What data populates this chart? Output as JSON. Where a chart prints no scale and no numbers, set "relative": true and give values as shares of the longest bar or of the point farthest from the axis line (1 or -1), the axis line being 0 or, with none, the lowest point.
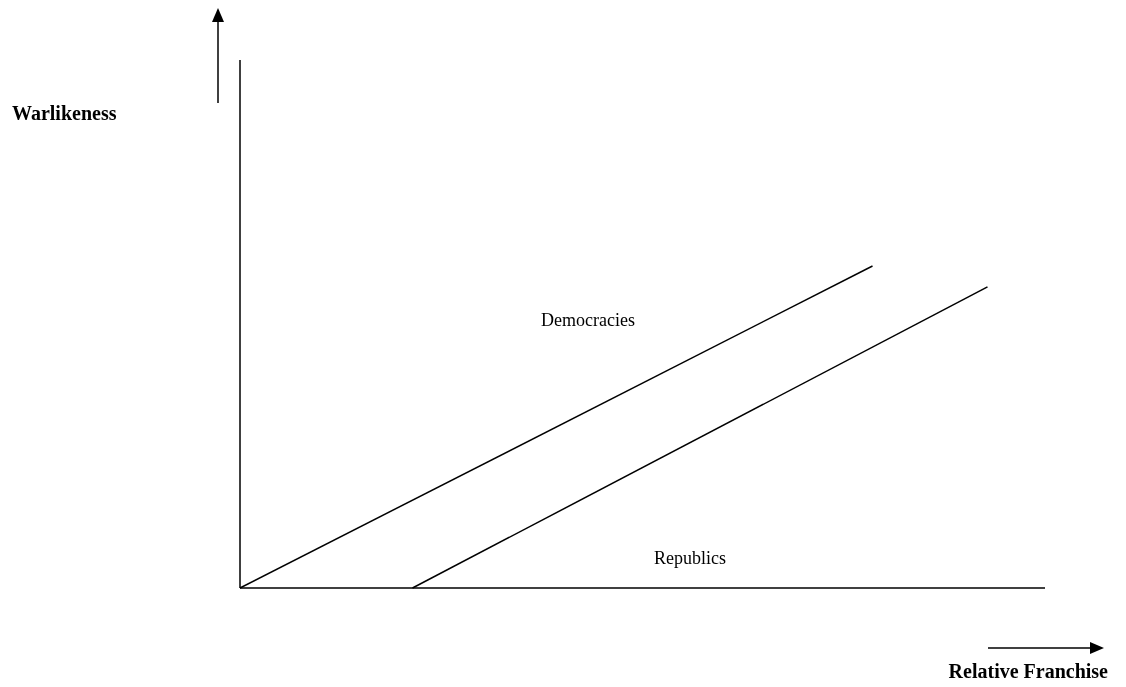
{
  "chart_data": {
    "type": "line",
    "relative": true,
    "xlabel": "Relative Franchise",
    "annotations": [
      "Warlikeness",
      "Democracies",
      "Republics"
    ],
    "categories": [
      null,
      null,
      null,
      null,
      null,
      null,
      null,
      null,
      null,
      null,
      null,
      null,
      null,
      null,
      null
    ],
    "series": [
      {
        "color": "#000000",
        "values": [
          0,
          null,
          null,
          null,
          null,
          null,
          null,
          null,
          null,
          null,
          null,
          1,
          null,
          null,
          null
        ]
      },
      {
        "color": "#000000",
        "values": [
          null,
          null,
          null,
          0,
          null,
          null,
          null,
          null,
          null,
          null,
          null,
          null,
          null,
          0.935,
          null
        ]
      }
    ]
  }
}
